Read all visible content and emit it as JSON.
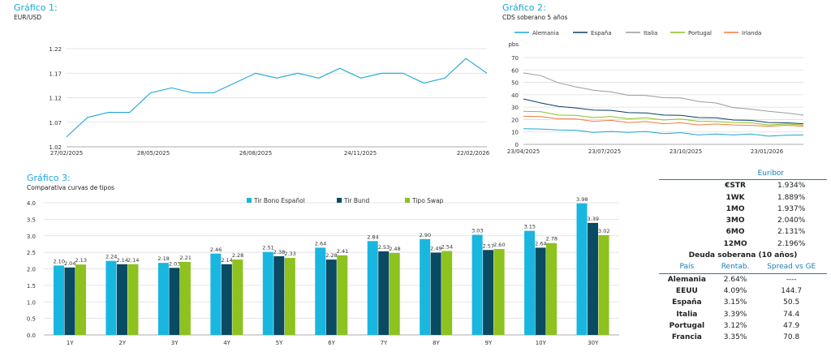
{
  "colors": {
    "accent": "#19a6d8",
    "dark": "#0b4f6c",
    "green": "#8ac219",
    "grid": "#d9d9d9",
    "table_blue": "#1b7db7"
  },
  "chart1": {
    "title": "Gráfico 1:",
    "subtitle": "EUR/USD"
  },
  "chart2": {
    "title": "Gráfico 2:",
    "subtitle": "CDS soberano 5 años"
  },
  "chart3": {
    "title": "Gráfico 3:",
    "subtitle": "Comparativa curvas de tipos"
  },
  "chart_data": [
    {
      "type": "line",
      "xlabel": "",
      "ylabel": "",
      "ylim": [
        1.02,
        1.22
      ],
      "yticks": [
        "1.02",
        "1.07",
        "1.12",
        "1.17",
        "1.22"
      ],
      "xtick_labels": [
        "27/02/2025",
        "28/05/2025",
        "26/08/2025",
        "24/11/2025",
        "22/02/2026"
      ],
      "grid": true,
      "legend": "none",
      "series": [
        {
          "color": "#19a6d8",
          "x": [
            0,
            5,
            10,
            15,
            20,
            25,
            30,
            35,
            40,
            45,
            50,
            55,
            60,
            65,
            70,
            75,
            80,
            85,
            90,
            95,
            100
          ],
          "values": [
            1.04,
            1.08,
            1.09,
            1.09,
            1.13,
            1.14,
            1.13,
            1.13,
            1.15,
            1.17,
            1.16,
            1.17,
            1.16,
            1.18,
            1.16,
            1.17,
            1.17,
            1.15,
            1.16,
            1.2,
            1.17
          ]
        }
      ]
    },
    {
      "type": "line",
      "xlabel": "",
      "ylabel": "pbs",
      "ylim": [
        0,
        70
      ],
      "yticks": [
        "0",
        "10",
        "20",
        "30",
        "40",
        "50",
        "60",
        "70"
      ],
      "xtick_labels": [
        "23/04/2025",
        "23/07/2025",
        "23/10/2025",
        "23/01/2026"
      ],
      "grid": true,
      "legend": "top",
      "series": [
        {
          "name": "Alemania",
          "color": "#19a6d8",
          "values": [
            13,
            12,
            12,
            11,
            10,
            10,
            10,
            10,
            9,
            9,
            8,
            8,
            8,
            8,
            7,
            7,
            8
          ]
        },
        {
          "name": "España",
          "color": "#0b3d63",
          "values": [
            37,
            33,
            31,
            29,
            28,
            27,
            26,
            25,
            24,
            23,
            22,
            21,
            20,
            19,
            18,
            17,
            17
          ]
        },
        {
          "name": "Italia",
          "color": "#9b9b9b",
          "values": [
            58,
            55,
            50,
            46,
            44,
            42,
            40,
            39,
            38,
            37,
            35,
            33,
            30,
            28,
            27,
            25,
            24
          ]
        },
        {
          "name": "Portugal",
          "color": "#8ac219",
          "values": [
            27,
            26,
            24,
            23,
            22,
            22,
            21,
            21,
            20,
            20,
            19,
            18,
            18,
            17,
            16,
            16,
            16
          ]
        },
        {
          "name": "Irlanda",
          "color": "#f07b3f",
          "values": [
            23,
            22,
            21,
            20,
            19,
            19,
            18,
            18,
            17,
            17,
            16,
            16,
            16,
            15,
            15,
            15,
            15
          ]
        }
      ]
    },
    {
      "type": "bar",
      "categories": [
        "1Y",
        "2Y",
        "3Y",
        "4Y",
        "5Y",
        "6Y",
        "7Y",
        "8Y",
        "9Y",
        "10Y",
        "30Y"
      ],
      "ylim": [
        0,
        4.0
      ],
      "yticks": [
        "0.0",
        "0.5",
        "1.0",
        "1.5",
        "2.0",
        "2.5",
        "3.0",
        "3.5",
        "4.0"
      ],
      "grid": true,
      "legend": "top",
      "series": [
        {
          "name": "Tir Bono Español",
          "color": "#19b6e0",
          "values": [
            2.1,
            2.24,
            2.18,
            2.46,
            2.51,
            2.64,
            2.84,
            2.9,
            3.03,
            3.15,
            3.98
          ],
          "labels": [
            "2.10",
            "2.24",
            "2.18",
            "2.46",
            "2.51",
            "2.64",
            "2.84",
            "2.90",
            "3.03",
            "3.15",
            "3.98"
          ]
        },
        {
          "name": "Tir Bund",
          "color": "#0a4a62",
          "values": [
            2.04,
            2.14,
            2.03,
            2.14,
            2.38,
            2.28,
            2.53,
            2.49,
            2.57,
            2.64,
            3.39
          ],
          "labels": [
            "2.04",
            "2.14",
            "2.03",
            "2.14",
            "2.38",
            "2.28",
            "2.53",
            "2.49",
            "2.57",
            "2.64",
            "3.39"
          ]
        },
        {
          "name": "Tipo Swap",
          "color": "#8dc21f",
          "values": [
            2.13,
            2.14,
            2.21,
            2.28,
            2.33,
            2.41,
            2.48,
            2.54,
            2.6,
            2.78,
            3.02
          ],
          "labels": [
            "2.13",
            "2.14",
            "2.21",
            "2.28",
            "2.33",
            "2.41",
            "2.48",
            "2.54",
            "2.60",
            "2.78",
            "3.02"
          ]
        }
      ]
    }
  ],
  "table": {
    "euribor_title": "Euribor",
    "euribor": [
      {
        "label": "€STR",
        "value": "1.934%"
      },
      {
        "label": "1WK",
        "value": "1.889%"
      },
      {
        "label": "1MO",
        "value": "1.937%"
      },
      {
        "label": "3MO",
        "value": "2.040%"
      },
      {
        "label": "6MO",
        "value": "2.131%"
      },
      {
        "label": "12MO",
        "value": "2.196%"
      }
    ],
    "deuda_title": "Deuda soberana (10 años)",
    "headers": [
      "País",
      "Rentab.",
      "Spread vs GE"
    ],
    "rows": [
      {
        "pais": "Alemania",
        "rent": "2.64%",
        "spread": "----"
      },
      {
        "pais": "EEUU",
        "rent": "4.09%",
        "spread": "144.7"
      },
      {
        "pais": "España",
        "rent": "3.15%",
        "spread": "50.5"
      },
      {
        "pais": "Italia",
        "rent": "3.39%",
        "spread": "74.4"
      },
      {
        "pais": "Portugal",
        "rent": "3.12%",
        "spread": "47.9"
      },
      {
        "pais": "Francia",
        "rent": "3.35%",
        "spread": "70.8"
      }
    ]
  }
}
